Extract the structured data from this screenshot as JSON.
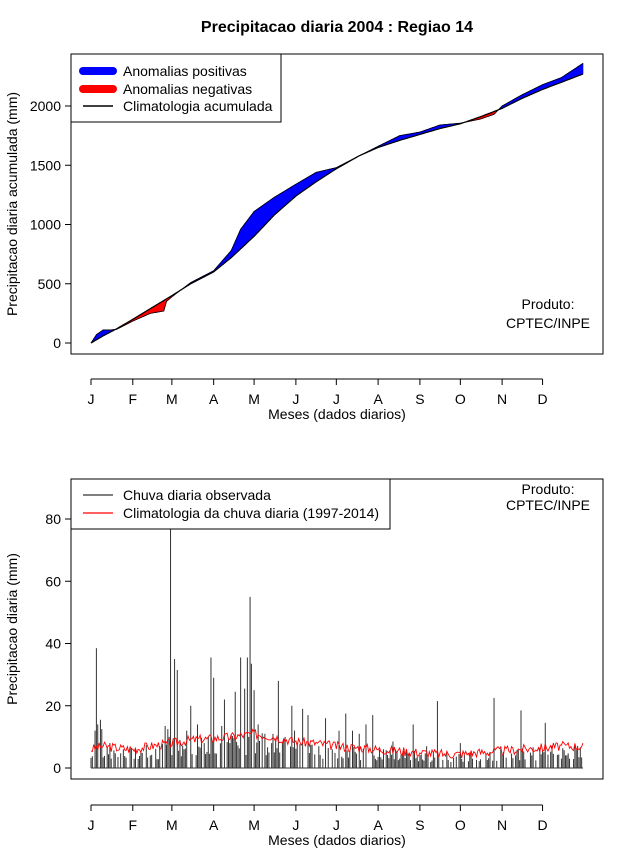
{
  "title": "Precipitacao diaria 2004 : Regiao 14",
  "colors": {
    "positive": "#0000ff",
    "negative": "#ff0000",
    "observed": "#333333",
    "climatology_daily": "#ff0000",
    "axis": "#000000"
  },
  "chart_data": [
    {
      "type": "area",
      "title": "Precipitacao diaria 2004 : Regiao 14",
      "xlabel": "Meses (dados diarios)",
      "ylabel": "Precipitacao diaria acumulada (mm)",
      "x_tick_labels": [
        "J",
        "F",
        "M",
        "A",
        "M",
        "J",
        "J",
        "A",
        "S",
        "O",
        "N",
        "D"
      ],
      "x_tick_days": [
        1,
        32,
        61,
        92,
        122,
        153,
        183,
        214,
        245,
        275,
        306,
        336
      ],
      "ylim": [
        0,
        2400
      ],
      "xlim": [
        1,
        366
      ],
      "y_ticks": [
        0,
        500,
        1000,
        1500,
        2000
      ],
      "legend": {
        "position": "top-left",
        "entries": [
          "Anomalias positivas",
          "Anomalias negativas",
          "Climatologia acumulada"
        ]
      },
      "annotation": [
        "Produto:",
        "CPTEC/INPE"
      ],
      "climatology_cumulative": {
        "day": [
          1,
          10,
          20,
          32,
          45,
          61,
          75,
          92,
          105,
          122,
          137,
          153,
          168,
          183,
          200,
          214,
          230,
          245,
          260,
          275,
          290,
          306,
          320,
          336,
          350,
          366
        ],
        "value": [
          0,
          60,
          120,
          200,
          290,
          400,
          500,
          600,
          720,
          900,
          1080,
          1240,
          1360,
          1470,
          1580,
          1650,
          1710,
          1760,
          1810,
          1850,
          1910,
          1980,
          2060,
          2140,
          2200,
          2270
        ]
      },
      "observed_cumulative": {
        "day": [
          1,
          5,
          10,
          15,
          20,
          32,
          45,
          55,
          57,
          61,
          75,
          92,
          105,
          112,
          122,
          137,
          153,
          168,
          183,
          200,
          214,
          230,
          245,
          260,
          275,
          290,
          300,
          306,
          320,
          336,
          350,
          366
        ],
        "value": [
          0,
          70,
          110,
          110,
          115,
          185,
          250,
          270,
          350,
          390,
          510,
          610,
          780,
          960,
          1110,
          1230,
          1340,
          1440,
          1480,
          1580,
          1660,
          1750,
          1780,
          1840,
          1855,
          1890,
          1930,
          2000,
          2090,
          2180,
          2240,
          2360
        ]
      }
    },
    {
      "type": "bar",
      "xlabel": "Meses (dados diarios)",
      "ylabel": "Precipitacao diaria (mm)",
      "x_tick_labels": [
        "J",
        "F",
        "M",
        "A",
        "M",
        "J",
        "J",
        "A",
        "S",
        "O",
        "N",
        "D"
      ],
      "x_tick_days": [
        1,
        32,
        61,
        92,
        122,
        153,
        183,
        214,
        245,
        275,
        306,
        336
      ],
      "ylim": [
        0,
        90
      ],
      "xlim": [
        1,
        366
      ],
      "y_ticks": [
        0,
        20,
        40,
        60,
        80
      ],
      "legend": {
        "position": "top-left",
        "entries": [
          "Chuva diaria observada",
          "Climatologia da chuva diaria (1997-2014)"
        ]
      },
      "annotation": [
        "Produto:",
        "CPTEC/INPE"
      ],
      "observed_daily_peaks": {
        "day": [
          4,
          5,
          6,
          8,
          9,
          15,
          25,
          38,
          45,
          52,
          56,
          58,
          59,
          60,
          62,
          63,
          65,
          67,
          70,
          72,
          75,
          80,
          85,
          88,
          90,
          92,
          98,
          100,
          104,
          108,
          112,
          115,
          117,
          118,
          119,
          120,
          122,
          125,
          130,
          135,
          140,
          145,
          150,
          152,
          158,
          162,
          170,
          175,
          180,
          185,
          190,
          195,
          200,
          205,
          210,
          218,
          225,
          240,
          250,
          258,
          275,
          282,
          300,
          305,
          320,
          338
        ],
        "value": [
          12,
          38.5,
          14,
          15.5,
          12.5,
          8,
          6,
          5,
          4,
          7,
          13.5,
          12.5,
          10,
          78,
          9.5,
          35,
          31.5,
          9,
          6,
          12,
          20,
          14,
          8,
          10,
          35.5,
          29,
          13.5,
          22,
          8,
          24.5,
          35.5,
          25.5,
          35.5,
          10,
          55,
          33.5,
          25,
          14,
          11,
          8,
          28,
          10,
          20,
          12,
          19,
          17,
          7,
          16,
          6,
          12,
          17.5,
          12,
          11,
          14,
          17,
          6,
          8.5,
          14,
          7,
          21.5,
          8,
          5,
          22.5,
          7,
          18.5,
          14.5
        ]
      },
      "climatology_daily": {
        "day": [
          1,
          10,
          20,
          32,
          45,
          61,
          75,
          92,
          105,
          122,
          137,
          153,
          168,
          183,
          200,
          214,
          230,
          245,
          260,
          275,
          290,
          306,
          320,
          336,
          350,
          366
        ],
        "value": [
          6,
          7,
          6.5,
          6,
          7,
          8,
          9,
          9.5,
          10,
          11,
          10,
          8.5,
          8,
          7,
          6.5,
          6,
          5.5,
          5,
          4.5,
          4.5,
          5,
          5.5,
          6,
          6.5,
          7,
          7
        ]
      }
    }
  ]
}
